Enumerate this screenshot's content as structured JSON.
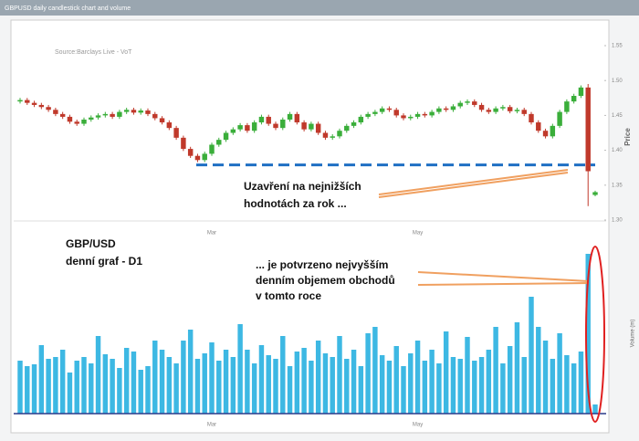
{
  "chart_data": [
    {
      "type": "candlestick",
      "title": "GBPUSD daily candlestick chart and volume",
      "source": "Source:Barclays Live - VoT",
      "y_label": "Price",
      "up_color": "#3aae3a",
      "down_color": "#c0392b",
      "categories": [
        null,
        null,
        null,
        null,
        null,
        null,
        null,
        null,
        null,
        null,
        null,
        null,
        null,
        null,
        null,
        null,
        null,
        null,
        null,
        null,
        null,
        null,
        null,
        null,
        null,
        null,
        null,
        "Mar",
        null,
        null,
        null,
        null,
        null,
        null,
        null,
        null,
        null,
        null,
        null,
        null,
        null,
        null,
        null,
        null,
        null,
        null,
        null,
        null,
        null,
        null,
        null,
        null,
        null,
        null,
        null,
        null,
        "May",
        null,
        null,
        null,
        null,
        null,
        null,
        null,
        null,
        null,
        null,
        null,
        null,
        null,
        null,
        null,
        null,
        null,
        null,
        null,
        null,
        null,
        null,
        null,
        null,
        null
      ],
      "open": [
        1.47,
        1.472,
        1.468,
        1.465,
        1.462,
        1.458,
        1.452,
        1.448,
        1.441,
        1.438,
        1.444,
        1.447,
        1.45,
        1.452,
        1.448,
        1.455,
        1.458,
        1.454,
        1.457,
        1.452,
        1.446,
        1.44,
        1.432,
        1.418,
        1.402,
        1.392,
        1.386,
        1.395,
        1.408,
        1.415,
        1.425,
        1.43,
        1.436,
        1.428,
        1.44,
        1.448,
        1.438,
        1.432,
        1.444,
        1.452,
        1.44,
        1.43,
        1.438,
        1.425,
        1.418,
        1.42,
        1.428,
        1.435,
        1.44,
        1.448,
        1.452,
        1.455,
        1.46,
        1.458,
        1.45,
        1.446,
        1.448,
        1.452,
        1.45,
        1.455,
        1.46,
        1.458,
        1.463,
        1.468,
        1.47,
        1.465,
        1.458,
        1.455,
        1.46,
        1.462,
        1.456,
        1.458,
        1.452,
        1.44,
        1.428,
        1.42,
        1.435,
        1.455,
        1.47,
        1.478,
        1.49,
        1.336
      ],
      "high": [
        1.475,
        1.475,
        1.471,
        1.468,
        1.465,
        1.461,
        1.455,
        1.451,
        1.444,
        1.447,
        1.45,
        1.453,
        1.455,
        1.455,
        1.458,
        1.461,
        1.461,
        1.46,
        1.46,
        1.455,
        1.449,
        1.443,
        1.435,
        1.421,
        1.405,
        1.395,
        1.398,
        1.411,
        1.418,
        1.428,
        1.433,
        1.439,
        1.439,
        1.443,
        1.451,
        1.451,
        1.441,
        1.447,
        1.455,
        1.455,
        1.443,
        1.441,
        1.441,
        1.428,
        1.423,
        1.431,
        1.438,
        1.443,
        1.451,
        1.455,
        1.458,
        1.463,
        1.463,
        1.461,
        1.453,
        1.451,
        1.455,
        1.455,
        1.458,
        1.463,
        1.463,
        1.466,
        1.471,
        1.473,
        1.473,
        1.468,
        1.461,
        1.463,
        1.465,
        1.465,
        1.461,
        1.461,
        1.455,
        1.443,
        1.431,
        1.438,
        1.458,
        1.473,
        1.481,
        1.493,
        1.495,
        1.342
      ],
      "low": [
        1.467,
        1.465,
        1.462,
        1.459,
        1.455,
        1.449,
        1.445,
        1.438,
        1.435,
        1.435,
        1.441,
        1.444,
        1.447,
        1.445,
        1.445,
        1.452,
        1.451,
        1.451,
        1.449,
        1.443,
        1.437,
        1.429,
        1.415,
        1.399,
        1.389,
        1.383,
        1.383,
        1.392,
        1.405,
        1.412,
        1.422,
        1.427,
        1.425,
        1.425,
        1.437,
        1.435,
        1.429,
        1.429,
        1.441,
        1.437,
        1.427,
        1.427,
        1.422,
        1.415,
        1.415,
        1.417,
        1.425,
        1.432,
        1.437,
        1.445,
        1.449,
        1.452,
        1.455,
        1.447,
        1.443,
        1.443,
        1.445,
        1.447,
        1.447,
        1.452,
        1.455,
        1.455,
        1.46,
        1.465,
        1.462,
        1.455,
        1.452,
        1.452,
        1.457,
        1.453,
        1.453,
        1.449,
        1.437,
        1.425,
        1.417,
        1.417,
        1.432,
        1.452,
        1.467,
        1.475,
        1.32,
        1.334
      ],
      "close": [
        1.472,
        1.468,
        1.465,
        1.462,
        1.458,
        1.452,
        1.448,
        1.441,
        1.438,
        1.444,
        1.447,
        1.45,
        1.452,
        1.448,
        1.455,
        1.458,
        1.454,
        1.457,
        1.452,
        1.446,
        1.44,
        1.432,
        1.418,
        1.402,
        1.392,
        1.386,
        1.395,
        1.408,
        1.415,
        1.425,
        1.43,
        1.436,
        1.428,
        1.44,
        1.448,
        1.438,
        1.432,
        1.444,
        1.452,
        1.44,
        1.43,
        1.438,
        1.425,
        1.418,
        1.42,
        1.428,
        1.435,
        1.44,
        1.448,
        1.452,
        1.455,
        1.46,
        1.458,
        1.45,
        1.446,
        1.448,
        1.452,
        1.45,
        1.455,
        1.46,
        1.458,
        1.463,
        1.468,
        1.47,
        1.465,
        1.458,
        1.455,
        1.46,
        1.462,
        1.456,
        1.458,
        1.452,
        1.44,
        1.428,
        1.42,
        1.435,
        1.455,
        1.47,
        1.478,
        1.49,
        1.37,
        1.34
      ],
      "ylim": [
        1.3,
        1.55
      ],
      "yticks": [
        1.55,
        {
          "value": 1.5,
          "label": "1.50"
        },
        1.45,
        {
          "value": 1.4,
          "label": "1.40"
        },
        1.35,
        {
          "value": 1.3,
          "label": "1.30"
        }
      ],
      "level": 1.379,
      "level_color": "#1f6fc4",
      "annotations": [
        "Uzavření na nejnižších",
        "hodnotách za rok ..."
      ]
    },
    {
      "type": "bar",
      "y_label": "Volume (m)",
      "color": "#3db8e3",
      "categories": [
        null,
        null,
        null,
        null,
        null,
        null,
        null,
        null,
        null,
        null,
        null,
        null,
        null,
        null,
        null,
        null,
        null,
        null,
        null,
        null,
        null,
        null,
        null,
        null,
        null,
        null,
        null,
        "Mar",
        null,
        null,
        null,
        null,
        null,
        null,
        null,
        null,
        null,
        null,
        null,
        null,
        null,
        null,
        null,
        null,
        null,
        null,
        null,
        null,
        null,
        null,
        null,
        null,
        null,
        null,
        null,
        null,
        "May",
        null,
        null,
        null,
        null,
        null,
        null,
        null,
        null,
        null,
        null,
        null,
        null,
        null,
        null,
        null,
        null,
        null,
        null,
        null,
        null,
        null,
        null,
        null,
        null,
        null
      ],
      "values": [
        58,
        52,
        54,
        75,
        60,
        62,
        70,
        45,
        58,
        62,
        55,
        85,
        65,
        60,
        50,
        72,
        68,
        48,
        52,
        80,
        70,
        62,
        55,
        80,
        92,
        60,
        66,
        78,
        58,
        70,
        62,
        98,
        70,
        55,
        75,
        64,
        60,
        85,
        52,
        68,
        72,
        58,
        80,
        66,
        62,
        85,
        60,
        70,
        52,
        88,
        95,
        64,
        58,
        74,
        52,
        66,
        80,
        58,
        70,
        55,
        90,
        62,
        60,
        84,
        58,
        62,
        70,
        95,
        55,
        74,
        100,
        62,
        128,
        95,
        80,
        60,
        88,
        64,
        55,
        68,
        175,
        10
      ],
      "ylim": [
        0,
        180
      ],
      "annotations": [
        "GBP/USD",
        "denní graf - D1"
      ],
      "annotations2": [
        "... je potvrzeno nejvyšším",
        "denním objemem obchodů",
        "v tomto roce"
      ]
    }
  ]
}
